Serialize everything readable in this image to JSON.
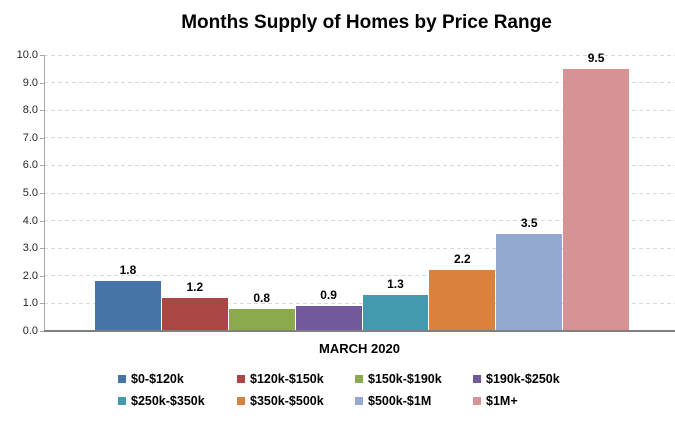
{
  "title": "Months Supply of Homes by Price Range",
  "chart_data": {
    "type": "bar",
    "title": "Months Supply of Homes by Price Range",
    "xlabel": "MARCH 2020",
    "ylabel": "",
    "ylim": [
      0,
      10
    ],
    "ytick_step": 1,
    "ytick_labels": [
      "0.0",
      "1.0",
      "2.0",
      "3.0",
      "4.0",
      "5.0",
      "6.0",
      "7.0",
      "8.0",
      "9.0",
      "10.0"
    ],
    "grid": true,
    "gridline_style": "dashed",
    "legend_position": "bottom",
    "categories": [
      "$0-$120k",
      "$120k-$150k",
      "$150k-$190k",
      "$190k-$250k",
      "$250k-$350k",
      "$350k-$500k",
      "$500k-$1M",
      "$1M+"
    ],
    "values": [
      1.8,
      1.2,
      0.8,
      0.9,
      1.3,
      2.2,
      3.5,
      9.5
    ],
    "value_labels": [
      "1.8",
      "1.2",
      "0.8",
      "0.9",
      "1.3",
      "2.2",
      "3.5",
      "9.5"
    ],
    "series_colors": [
      "#4575A7",
      "#AA4744",
      "#8BA94D",
      "#71599B",
      "#4399AD",
      "#D9823D",
      "#94A9D2",
      "#D69294"
    ]
  },
  "colors": {
    "background": "#FFFFFF",
    "gridline": "#D9D9D9",
    "y_axis_line": "#A6A6A6",
    "category_axis_line": "#7F7F7F",
    "text": "#000000"
  }
}
